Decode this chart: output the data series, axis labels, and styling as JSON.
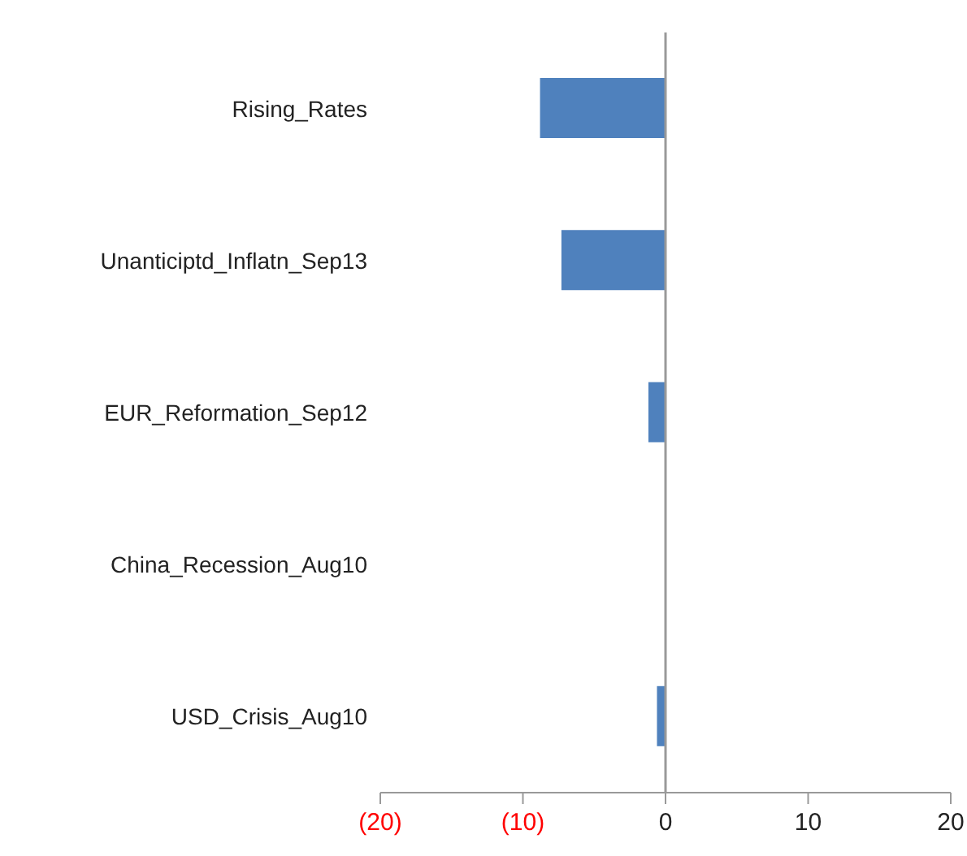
{
  "chart_data": {
    "type": "bar",
    "orientation": "horizontal",
    "categories": [
      "Rising_Rates",
      "Unanticiptd_Inflatn_Sep13",
      "EUR_Reformation_Sep12",
      "China_Recession_Aug10",
      "USD_Crisis_Aug10"
    ],
    "values": [
      -8.8,
      -7.3,
      -1.2,
      0,
      -0.6
    ],
    "color": "#4f81bd",
    "xlim": [
      -20,
      20
    ],
    "xticks": [
      {
        "value": -20,
        "label": "(20)"
      },
      {
        "value": -10,
        "label": "(10)"
      },
      0,
      10,
      20
    ],
    "legend": false
  }
}
